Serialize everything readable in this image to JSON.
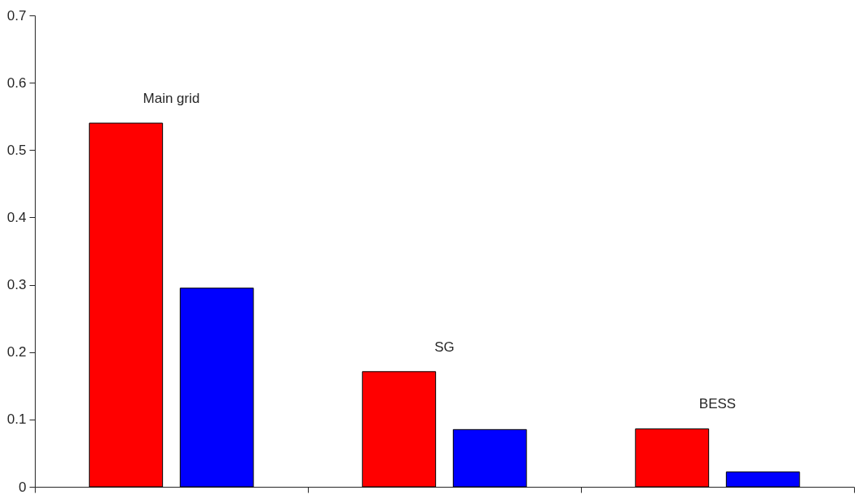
{
  "chart_data": {
    "type": "bar",
    "categories": [
      "Main grid",
      "SG",
      "BESS"
    ],
    "series": [
      {
        "color": "#ff0000",
        "values": [
          0.54,
          0.171,
          0.086
        ]
      },
      {
        "color": "#0000ff",
        "values": [
          0.295,
          0.085,
          0.022
        ]
      }
    ],
    "ylim": [
      0,
      0.7
    ],
    "yticks": [
      0,
      0.1,
      0.2,
      0.3,
      0.4,
      0.5,
      0.6,
      0.7
    ],
    "grid": false,
    "legend": false,
    "tick_labels": "y"
  }
}
